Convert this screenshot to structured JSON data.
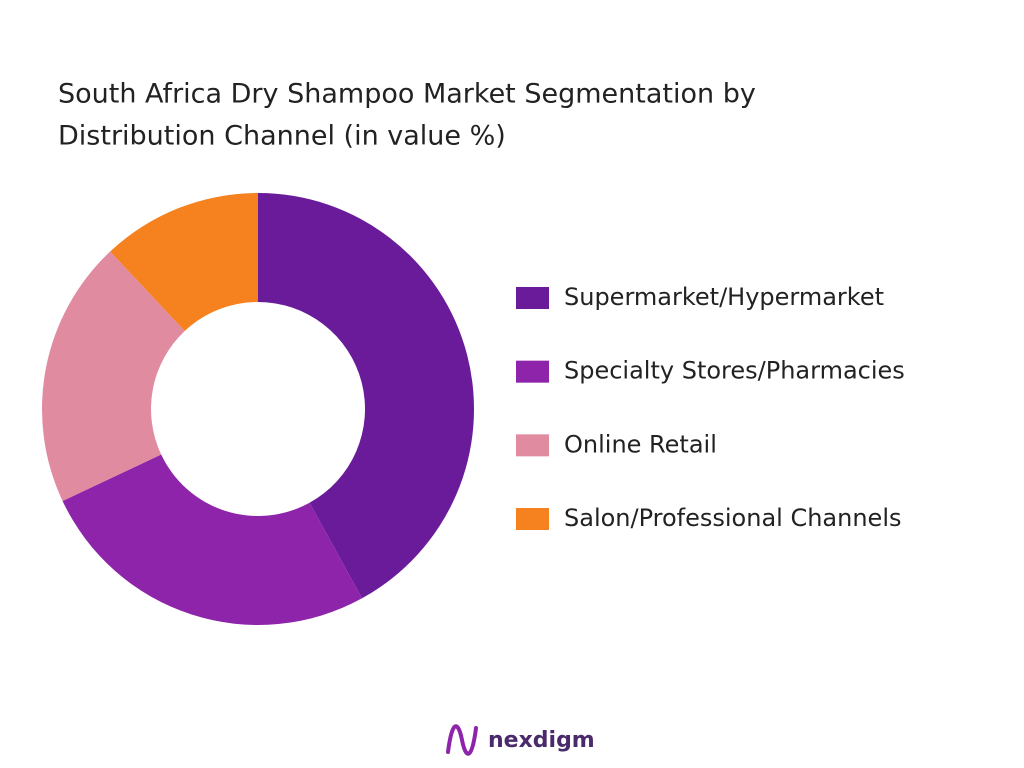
{
  "chart_data": {
    "type": "donut",
    "title": [
      "South Africa Dry Shampoo Market Segmentation by",
      "Distribution Channel (in value %)"
    ],
    "categories": [
      "Supermarket/Hypermarket",
      "Specialty Stores/Pharmacies",
      "Online Retail",
      "Salon/Professional Channels"
    ],
    "values": [
      42,
      26,
      20,
      12
    ],
    "colors": [
      "#6a1b9a",
      "#8e24aa",
      "#e08ba0",
      "#f5821f"
    ],
    "legend": "right"
  },
  "brand": "nexdigm"
}
